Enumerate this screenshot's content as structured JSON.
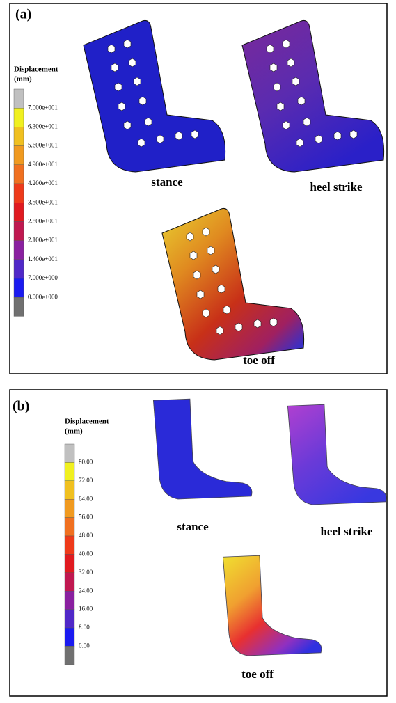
{
  "panel_a": {
    "label": "(a)",
    "legend": {
      "title": "Displacement",
      "unit": "(mm)",
      "ticks": [
        "7.000e+001",
        "6.300e+001",
        "5.600e+001",
        "4.900e+001",
        "4.200e+001",
        "3.500e+001",
        "2.800e+001",
        "2.100e+001",
        "1.400e+001",
        "7.000e+000",
        "0.000e+000"
      ]
    },
    "captions": [
      "stance",
      "heel strike",
      "toe off"
    ]
  },
  "panel_b": {
    "label": "(b)",
    "legend": {
      "title": "Displacement",
      "unit": "(mm)",
      "ticks": [
        "80.00",
        "72.00",
        "64.00",
        "56.00",
        "48.00",
        "40.00",
        "32.00",
        "24.00",
        "16.00",
        "8.00",
        "0.00"
      ]
    },
    "captions": [
      "stance",
      "heel strike",
      "toe off"
    ]
  }
}
